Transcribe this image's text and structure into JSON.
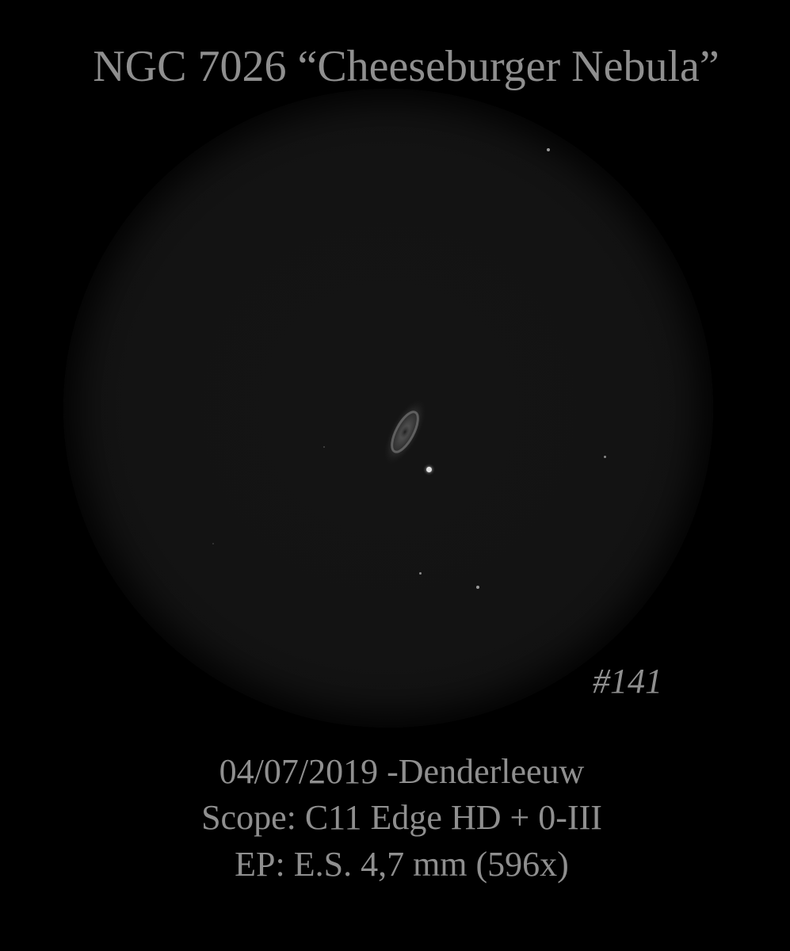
{
  "title": "NGC 7026 “Cheeseburger Nebula”",
  "sketch_number": "#141",
  "observation": {
    "date_location": "04/07/2019 -Denderleeuw",
    "scope": "Scope: C11 Edge HD + 0-III",
    "eyepiece": "EP: E.S. 4,7 mm (596x)"
  },
  "colors": {
    "background": "#000000",
    "text": "#8f8f8f",
    "field": "#131313"
  }
}
